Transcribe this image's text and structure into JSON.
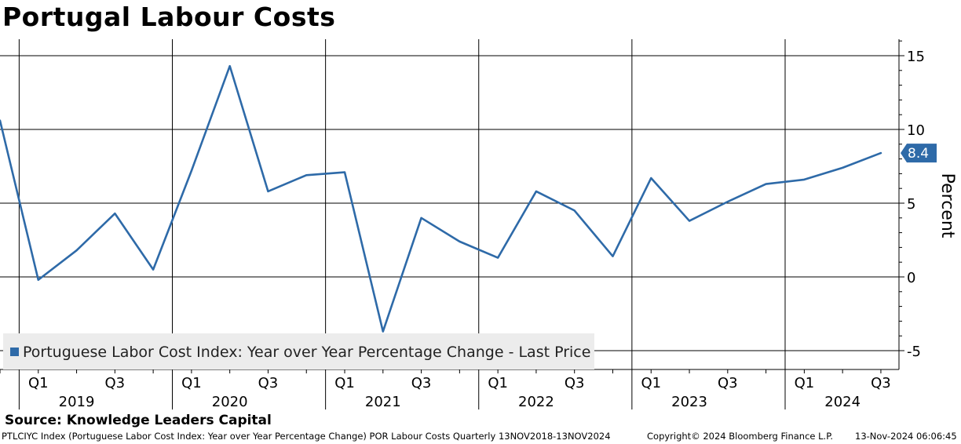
{
  "header": {
    "title": "Portugal Labour Costs"
  },
  "chart_data": {
    "type": "line",
    "title": "Portugal Labour Costs",
    "ylabel": "Percent",
    "xlabel": "",
    "ylim": [
      -5.5,
      16
    ],
    "yticks": [
      -5,
      0,
      5,
      10,
      15
    ],
    "ytick_labels": [
      "-5",
      "0",
      "5",
      "10",
      "15"
    ],
    "quarter_labels": [
      "Q1",
      "Q3"
    ],
    "years": [
      "2019",
      "2020",
      "2021",
      "2022",
      "2023",
      "2024"
    ],
    "grid": true,
    "legend_position": "bottom-left",
    "series": [
      {
        "name": "Portuguese Labor Cost Index: Year over Year Percentage Change - Last Price",
        "color": "#2e6aa8",
        "x": [
          "2018Q4",
          "2019Q1",
          "2019Q2",
          "2019Q3",
          "2019Q4",
          "2020Q1",
          "2020Q2",
          "2020Q3",
          "2020Q4",
          "2021Q1",
          "2021Q2",
          "2021Q3",
          "2021Q4",
          "2022Q1",
          "2022Q2",
          "2022Q3",
          "2022Q4",
          "2023Q1",
          "2023Q2",
          "2023Q3",
          "2023Q4",
          "2024Q1",
          "2024Q2",
          "2024Q3"
        ],
        "values": [
          10.6,
          -0.2,
          1.8,
          4.3,
          0.5,
          7.2,
          14.3,
          5.8,
          6.9,
          7.1,
          -3.7,
          4.0,
          2.4,
          1.3,
          5.8,
          4.5,
          1.4,
          6.7,
          3.8,
          5.1,
          6.3,
          6.6,
          7.4,
          8.4
        ]
      }
    ],
    "last_value": "8.4"
  },
  "source": "Source: Knowledge Leaders Capital",
  "footer": {
    "ticker": "PTLCIYC Index (Portuguese Labor Cost Index: Year over Year Percentage Change) POR Labour Costs  Quarterly 13NOV2018-13NOV2024",
    "copyright": "Copyright© 2024 Bloomberg Finance L.P.",
    "timestamp": "13-Nov-2024 06:06:45"
  },
  "colors": {
    "line": "#2e6aa8",
    "grid": "#000000",
    "legend_bg": "#ececec",
    "last_badge": "#2e6aa8"
  }
}
